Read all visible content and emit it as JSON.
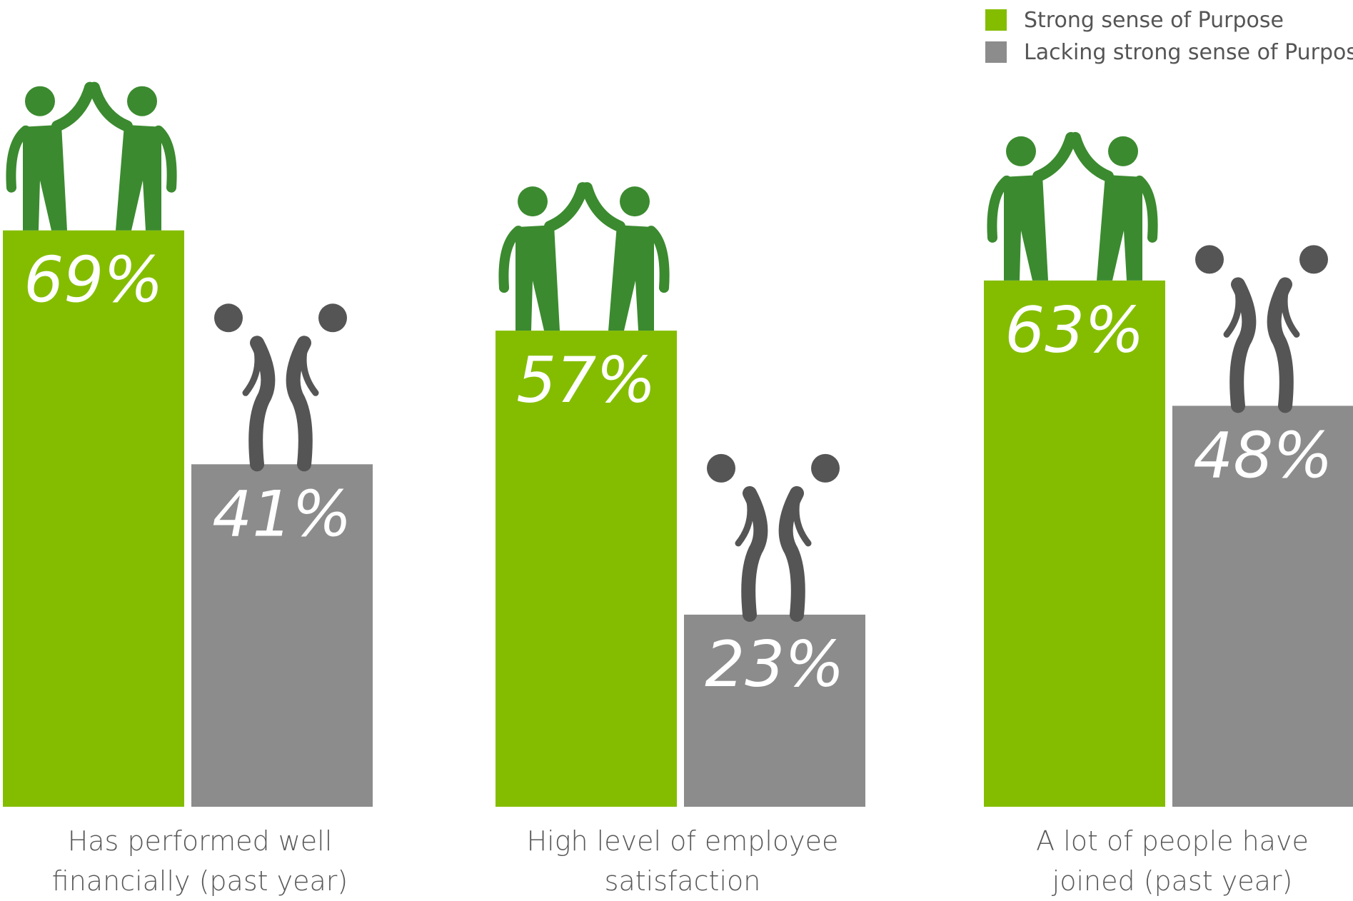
{
  "legend": {
    "items": [
      {
        "label": "Strong sense of Purpose",
        "color": "#84bd00"
      },
      {
        "label": "Lacking strong sense of Purpose",
        "color": "#8c8c8c"
      }
    ]
  },
  "chart_data": {
    "type": "bar",
    "categories": [
      "Has performed well financially (past year)",
      "High level of employee satisfaction",
      "A lot of people have joined (past year)"
    ],
    "category_lines": [
      [
        "Has performed well",
        "financially (past year)"
      ],
      [
        "High level of employee",
        "satisfaction"
      ],
      [
        "A lot of people have",
        "joined (past year)"
      ]
    ],
    "series": [
      {
        "name": "Strong sense of Purpose",
        "values": [
          69,
          57,
          63
        ],
        "labels": [
          "69%",
          "57%",
          "63%"
        ],
        "color": "#84bd00",
        "icon": "high-five-people-icon",
        "icon_color": "#3b8a2f"
      },
      {
        "name": "Lacking strong sense of Purpose",
        "values": [
          41,
          23,
          48
        ],
        "labels": [
          "41%",
          "23%",
          "48%"
        ],
        "color": "#8c8c8c",
        "icon": "slumped-people-icon",
        "icon_color": "#555555"
      }
    ],
    "ylim": [
      0,
      100
    ],
    "grid": false,
    "legend_position": "top-right"
  }
}
